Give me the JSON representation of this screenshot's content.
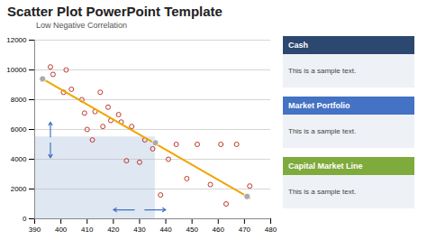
{
  "chart_data": {
    "type": "scatter",
    "title": "Scatter Plot PowerPoint Template",
    "subtitle": "Low Negative Correlation",
    "xlim": [
      390,
      480
    ],
    "ylim": [
      0,
      12000
    ],
    "xticks": [
      390,
      400,
      410,
      420,
      430,
      440,
      450,
      460,
      470,
      480
    ],
    "yticks": [
      0,
      2000,
      4000,
      6000,
      8000,
      10000,
      12000
    ],
    "grid": "y",
    "series": [
      {
        "type": "scatter",
        "marker": "open_circle",
        "color": "#c0392b",
        "x": [
          393,
          396,
          397,
          401,
          402,
          404,
          408,
          409,
          410,
          412,
          413,
          415,
          416,
          418,
          419,
          422,
          423,
          425,
          427,
          430,
          432,
          435,
          438,
          441,
          444,
          448,
          452,
          457,
          461,
          463,
          467,
          472
        ],
        "values": [
          9400,
          10200,
          9700,
          8500,
          10000,
          8700,
          8000,
          7100,
          6000,
          5300,
          7200,
          8500,
          6200,
          7500,
          6600,
          7000,
          6500,
          3900,
          6200,
          3800,
          5300,
          4700,
          1600,
          4000,
          5000,
          2700,
          5000,
          2300,
          5000,
          1000,
          5000,
          2200
        ]
      },
      {
        "type": "line",
        "color": "#f0a500",
        "x": [
          393,
          472
        ],
        "values": [
          9400,
          1400
        ]
      },
      {
        "type": "scatter",
        "marker": "circle",
        "color": "#aaaaaa",
        "x": [
          393,
          436,
          471
        ],
        "values": [
          9400,
          5100,
          1500
        ]
      }
    ],
    "shaded_region": {
      "x": [
        390,
        436
      ],
      "y": [
        0,
        5500
      ],
      "color": "#b0c4de"
    },
    "arrows": {
      "color": "#4472c4",
      "items": [
        {
          "x1": 396,
          "y1": 5500,
          "x2": 396,
          "y2": 6500
        },
        {
          "x1": 396,
          "y1": 5100,
          "x2": 396,
          "y2": 4100
        },
        {
          "x1": 428,
          "y1": 600,
          "x2": 420,
          "y2": 600
        },
        {
          "x1": 432,
          "y1": 600,
          "x2": 440,
          "y2": 600
        }
      ]
    },
    "panels": [
      {
        "label": "Cash",
        "color": "#2c4770",
        "text": "This is a sample text."
      },
      {
        "label": "Market Portfolio",
        "color": "#4472c4",
        "text": "This is a sample text."
      },
      {
        "label": "Capital Market Line",
        "color": "#7faa3c",
        "text": "This is a sample text."
      }
    ]
  }
}
